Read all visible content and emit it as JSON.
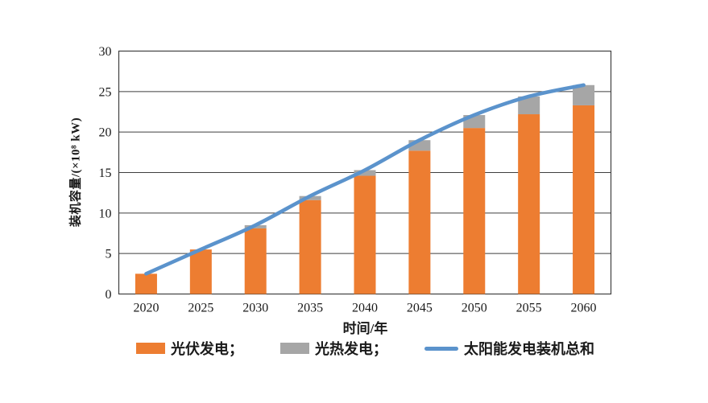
{
  "figure": {
    "background": "#ffffff"
  },
  "chart_data": {
    "type": "stacked-bar-line-combo",
    "title": "",
    "categories": [
      "2020",
      "2025",
      "2030",
      "2035",
      "2040",
      "2045",
      "2050",
      "2055",
      "2060"
    ],
    "series": [
      {
        "name": "光伏发电",
        "chart_type": "bar",
        "stack": "capacity",
        "color": "#ED7D31",
        "values": [
          2.5,
          5.5,
          8.1,
          11.6,
          14.6,
          17.7,
          20.5,
          22.2,
          23.3
        ]
      },
      {
        "name": "光热发电",
        "chart_type": "bar",
        "stack": "capacity",
        "color": "#A6A6A6",
        "values": [
          0,
          0,
          0.4,
          0.5,
          0.7,
          1.3,
          1.6,
          2.2,
          2.5
        ]
      },
      {
        "name": "太阳能发电装机总和",
        "chart_type": "line",
        "color": "#5B93CC",
        "values": [
          2.5,
          5.5,
          8.5,
          12.1,
          15.3,
          19.0,
          22.1,
          24.4,
          25.8
        ]
      }
    ],
    "xlabel": "时间/年",
    "ylabel": "装机容量/(×10⁸ kW)",
    "ylim": [
      0,
      30
    ],
    "yticks": [
      0,
      5,
      10,
      15,
      20,
      25,
      30
    ],
    "grid": true,
    "plot_border": true,
    "legend_position": "bottom",
    "legend": [
      {
        "label": "光伏发电；",
        "marker": "rect",
        "color": "#ED7D31"
      },
      {
        "label": "光热发电；",
        "marker": "rect",
        "color": "#A6A6A6"
      },
      {
        "label": "太阳能发电装机总和",
        "marker": "line",
        "color": "#5B93CC"
      }
    ],
    "axis_color": "#3f3f3f",
    "text_color": "#1a1a1a"
  }
}
